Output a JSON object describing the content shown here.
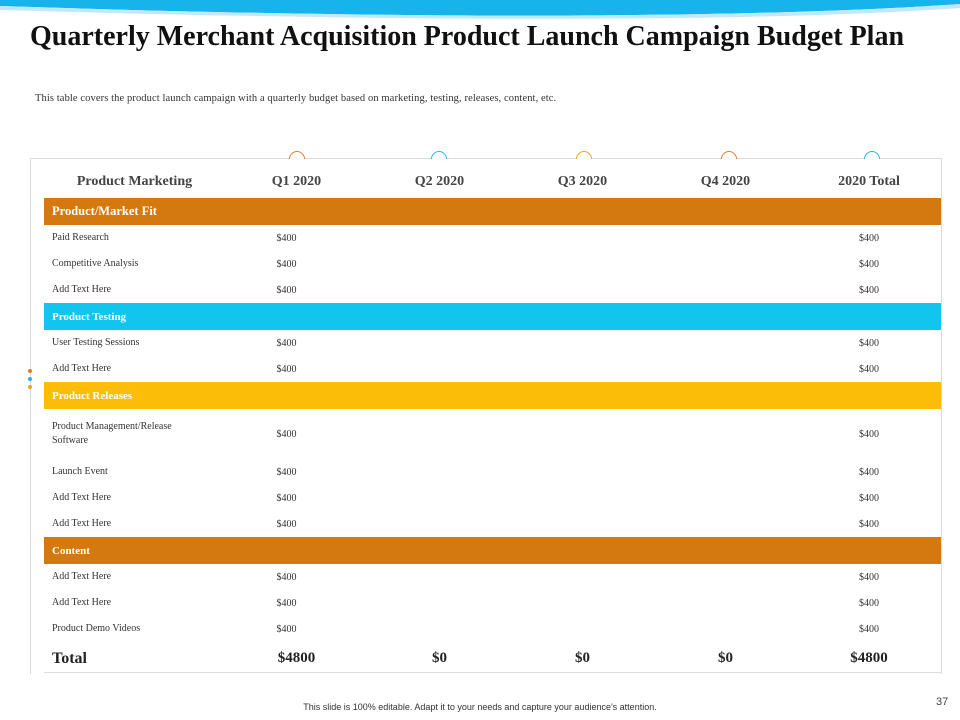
{
  "slide": {
    "title": "Quarterly Merchant Acquisition Product Launch Campaign Budget Plan",
    "subtitle": "This table covers  the product launch campaign  with a quarterly  budget based on marketing,  testing, releases,  content,  etc.",
    "footer": "This slide is 100% editable.  Adapt it to your needs and capture your audience's attention.",
    "page_number": "37"
  },
  "colors": {
    "orange": "#d4790f",
    "cyan": "#12c5ef",
    "yellow": "#fbbd08",
    "circle_colors": [
      "#e07a2e",
      "#21b6e8",
      "#f2a318",
      "#e07a2e",
      "#21b6e8"
    ]
  },
  "table": {
    "headers": [
      "Product Marketing",
      "Q1 2020",
      "Q2 2020",
      "Q3 2020",
      "Q4 2020",
      "2020 Total"
    ],
    "sections": [
      {
        "name": "Product/Market Fit",
        "rows": [
          {
            "label": "Paid Research",
            "q1": "$400",
            "total": "$400"
          },
          {
            "label": "Competitive Analysis",
            "q1": "$400",
            "total": "$400"
          },
          {
            "label": "Add Text Here",
            "q1": "$400",
            "total": "$400"
          }
        ]
      },
      {
        "name": "Product Testing",
        "rows": [
          {
            "label": "User Testing Sessions",
            "q1": "$400",
            "total": "$400"
          },
          {
            "label": "Add Text Here",
            "q1": "$400",
            "total": "$400"
          }
        ]
      },
      {
        "name": "Product Releases",
        "rows": [
          {
            "label": "Product Management/Release Software",
            "q1": "$400",
            "total": "$400"
          },
          {
            "label": "Launch Event",
            "q1": "$400",
            "total": "$400"
          },
          {
            "label": "Add Text Here",
            "q1": "$400",
            "total": "$400"
          },
          {
            "label": "Add Text Here",
            "q1": "$400",
            "total": "$400"
          }
        ]
      },
      {
        "name": "Content",
        "rows": [
          {
            "label": "Add Text Here",
            "q1": "$400",
            "total": "$400"
          },
          {
            "label": "Add Text Here",
            "q1": "$400",
            "total": "$400"
          },
          {
            "label": "Product Demo Videos",
            "q1": "$400",
            "total": "$400"
          }
        ]
      }
    ],
    "total_row": [
      "Total",
      "$4800",
      "$0",
      "$0",
      "$0",
      "$4800"
    ]
  }
}
